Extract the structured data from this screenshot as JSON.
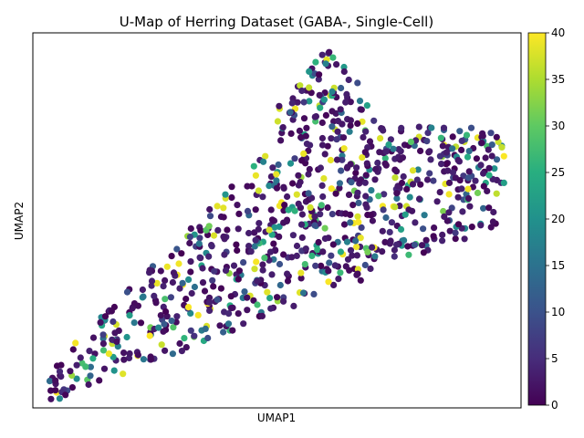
{
  "chart_data": {
    "type": "scatter",
    "title": "U-Map of Herring Dataset (GABA-, Single-Cell)",
    "xlabel": "UMAP1",
    "ylabel": "UMAP2",
    "xlim": [
      0,
      100
    ],
    "ylim": [
      0,
      100
    ],
    "x_ticks_shown": false,
    "y_ticks_shown": false,
    "grid": false,
    "colormap": "viridis",
    "colorbar": {
      "min": 0,
      "max": 40,
      "ticks": [
        "0",
        "5",
        "10",
        "15",
        "20",
        "25",
        "30",
        "35",
        "40"
      ]
    },
    "marker_edge_color": "#000000",
    "point_count": 900,
    "generator_seed": 42
  }
}
